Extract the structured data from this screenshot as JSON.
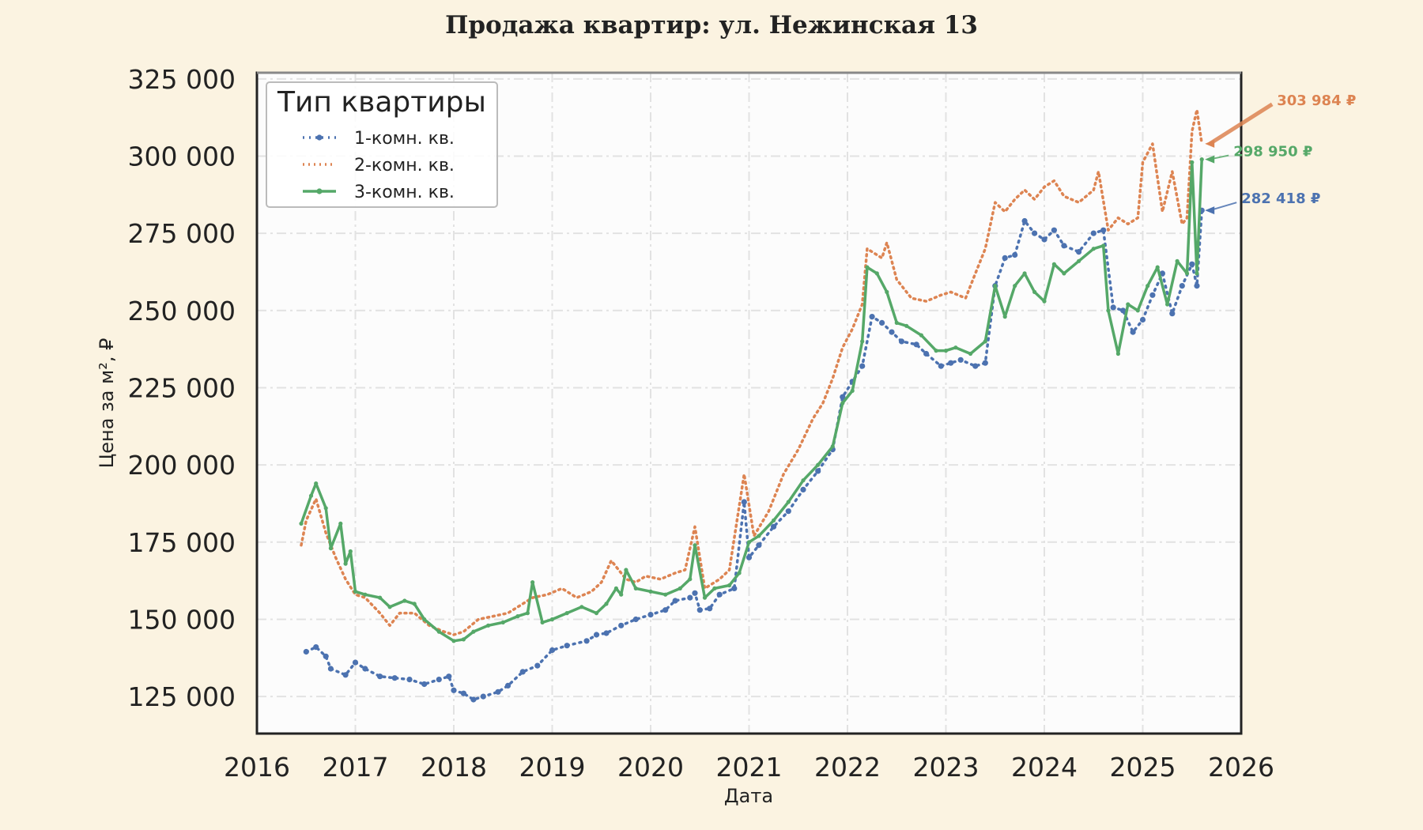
{
  "chart_data": {
    "type": "line",
    "title": "Продажа квартир: ул. Нежинская 13",
    "xlabel": "Дата",
    "ylabel": "Цена за м², ₽",
    "xlim": [
      2016,
      2026
    ],
    "ylim": [
      113000,
      327000
    ],
    "x_ticks": [
      "2016",
      "2017",
      "2018",
      "2019",
      "2020",
      "2021",
      "2022",
      "2023",
      "2024",
      "2025",
      "2026"
    ],
    "y_ticks": [
      "125 000",
      "150 000",
      "175 000",
      "200 000",
      "225 000",
      "250 000",
      "275 000",
      "300 000",
      "325 000"
    ],
    "grid": true,
    "legend_title": "Тип квартиры",
    "legend_position": "top-left",
    "series": [
      {
        "name": "1-комн. кв.",
        "color": "#4c72b0",
        "style": "dotted-markers",
        "points": [
          [
            2016.5,
            139500
          ],
          [
            2016.6,
            141000
          ],
          [
            2016.7,
            138000
          ],
          [
            2016.75,
            134000
          ],
          [
            2016.9,
            132000
          ],
          [
            2017.0,
            136000
          ],
          [
            2017.1,
            134000
          ],
          [
            2017.25,
            131500
          ],
          [
            2017.4,
            131000
          ],
          [
            2017.55,
            130500
          ],
          [
            2017.7,
            129000
          ],
          [
            2017.85,
            130500
          ],
          [
            2017.95,
            131500
          ],
          [
            2018.0,
            127000
          ],
          [
            2018.1,
            126000
          ],
          [
            2018.2,
            124000
          ],
          [
            2018.3,
            125000
          ],
          [
            2018.45,
            126500
          ],
          [
            2018.55,
            128500
          ],
          [
            2018.7,
            133000
          ],
          [
            2018.85,
            135000
          ],
          [
            2019.0,
            140000
          ],
          [
            2019.15,
            141500
          ],
          [
            2019.35,
            143000
          ],
          [
            2019.45,
            145000
          ],
          [
            2019.55,
            145500
          ],
          [
            2019.7,
            148000
          ],
          [
            2019.85,
            150000
          ],
          [
            2020.0,
            151500
          ],
          [
            2020.15,
            153000
          ],
          [
            2020.25,
            156000
          ],
          [
            2020.4,
            157000
          ],
          [
            2020.45,
            158500
          ],
          [
            2020.5,
            153000
          ],
          [
            2020.6,
            153500
          ],
          [
            2020.7,
            158000
          ],
          [
            2020.85,
            160000
          ],
          [
            2020.95,
            188000
          ],
          [
            2021.0,
            170000
          ],
          [
            2021.1,
            174000
          ],
          [
            2021.25,
            180000
          ],
          [
            2021.4,
            185000
          ],
          [
            2021.55,
            192000
          ],
          [
            2021.7,
            198000
          ],
          [
            2021.85,
            205000
          ],
          [
            2021.95,
            222000
          ],
          [
            2022.05,
            227000
          ],
          [
            2022.15,
            232000
          ],
          [
            2022.25,
            248000
          ],
          [
            2022.35,
            246000
          ],
          [
            2022.45,
            243000
          ],
          [
            2022.55,
            240000
          ],
          [
            2022.7,
            239000
          ],
          [
            2022.8,
            236000
          ],
          [
            2022.95,
            232000
          ],
          [
            2023.05,
            233000
          ],
          [
            2023.15,
            234000
          ],
          [
            2023.3,
            232000
          ],
          [
            2023.4,
            233000
          ],
          [
            2023.5,
            258000
          ],
          [
            2023.6,
            267000
          ],
          [
            2023.7,
            268000
          ],
          [
            2023.8,
            279000
          ],
          [
            2023.9,
            275000
          ],
          [
            2024.0,
            273000
          ],
          [
            2024.1,
            276000
          ],
          [
            2024.2,
            271000
          ],
          [
            2024.35,
            269000
          ],
          [
            2024.5,
            275000
          ],
          [
            2024.6,
            276000
          ],
          [
            2024.7,
            251000
          ],
          [
            2024.8,
            250000
          ],
          [
            2024.9,
            243000
          ],
          [
            2025.0,
            247000
          ],
          [
            2025.1,
            255000
          ],
          [
            2025.2,
            262000
          ],
          [
            2025.3,
            249000
          ],
          [
            2025.4,
            258000
          ],
          [
            2025.5,
            265000
          ],
          [
            2025.55,
            258000
          ],
          [
            2025.6,
            282418
          ]
        ]
      },
      {
        "name": "2-комн. кв.",
        "color": "#dd8452",
        "style": "dotted",
        "points": [
          [
            2016.45,
            174000
          ],
          [
            2016.5,
            182000
          ],
          [
            2016.6,
            189000
          ],
          [
            2016.7,
            178000
          ],
          [
            2016.8,
            170000
          ],
          [
            2016.9,
            163000
          ],
          [
            2017.0,
            158000
          ],
          [
            2017.1,
            157000
          ],
          [
            2017.25,
            152000
          ],
          [
            2017.35,
            148000
          ],
          [
            2017.45,
            152000
          ],
          [
            2017.6,
            152000
          ],
          [
            2017.75,
            148000
          ],
          [
            2017.9,
            146000
          ],
          [
            2018.0,
            145000
          ],
          [
            2018.1,
            146000
          ],
          [
            2018.25,
            150000
          ],
          [
            2018.4,
            151000
          ],
          [
            2018.55,
            152000
          ],
          [
            2018.7,
            155000
          ],
          [
            2018.8,
            157000
          ],
          [
            2018.95,
            158000
          ],
          [
            2019.1,
            160000
          ],
          [
            2019.25,
            157000
          ],
          [
            2019.4,
            159000
          ],
          [
            2019.5,
            162000
          ],
          [
            2019.6,
            169000
          ],
          [
            2019.75,
            163000
          ],
          [
            2019.85,
            162000
          ],
          [
            2019.95,
            164000
          ],
          [
            2020.1,
            163000
          ],
          [
            2020.25,
            165000
          ],
          [
            2020.35,
            166000
          ],
          [
            2020.45,
            180000
          ],
          [
            2020.55,
            160000
          ],
          [
            2020.7,
            163000
          ],
          [
            2020.8,
            166000
          ],
          [
            2020.95,
            197000
          ],
          [
            2021.05,
            177000
          ],
          [
            2021.2,
            185000
          ],
          [
            2021.35,
            197000
          ],
          [
            2021.5,
            205000
          ],
          [
            2021.65,
            215000
          ],
          [
            2021.75,
            220000
          ],
          [
            2021.85,
            228000
          ],
          [
            2021.95,
            238000
          ],
          [
            2022.05,
            244000
          ],
          [
            2022.15,
            252000
          ],
          [
            2022.2,
            270000
          ],
          [
            2022.35,
            267000
          ],
          [
            2022.4,
            272000
          ],
          [
            2022.5,
            260000
          ],
          [
            2022.65,
            254000
          ],
          [
            2022.8,
            253000
          ],
          [
            2022.95,
            255000
          ],
          [
            2023.05,
            256000
          ],
          [
            2023.2,
            254000
          ],
          [
            2023.3,
            262000
          ],
          [
            2023.4,
            270000
          ],
          [
            2023.5,
            285000
          ],
          [
            2023.6,
            282000
          ],
          [
            2023.7,
            286000
          ],
          [
            2023.8,
            289000
          ],
          [
            2023.9,
            286000
          ],
          [
            2024.0,
            290000
          ],
          [
            2024.1,
            292000
          ],
          [
            2024.2,
            287000
          ],
          [
            2024.35,
            285000
          ],
          [
            2024.5,
            289000
          ],
          [
            2024.55,
            295000
          ],
          [
            2024.65,
            276000
          ],
          [
            2024.75,
            280000
          ],
          [
            2024.85,
            278000
          ],
          [
            2024.95,
            280000
          ],
          [
            2025.0,
            298000
          ],
          [
            2025.1,
            304000
          ],
          [
            2025.2,
            282000
          ],
          [
            2025.3,
            295000
          ],
          [
            2025.4,
            278000
          ],
          [
            2025.45,
            280000
          ],
          [
            2025.5,
            308000
          ],
          [
            2025.55,
            315000
          ],
          [
            2025.6,
            303984
          ]
        ]
      },
      {
        "name": "3-комн. кв.",
        "color": "#55a868",
        "style": "solid-markers",
        "points": [
          [
            2016.45,
            181000
          ],
          [
            2016.55,
            190000
          ],
          [
            2016.6,
            194000
          ],
          [
            2016.7,
            186000
          ],
          [
            2016.75,
            173000
          ],
          [
            2016.85,
            181000
          ],
          [
            2016.9,
            168000
          ],
          [
            2016.95,
            172000
          ],
          [
            2017.0,
            159000
          ],
          [
            2017.1,
            158000
          ],
          [
            2017.25,
            157000
          ],
          [
            2017.35,
            154000
          ],
          [
            2017.5,
            156000
          ],
          [
            2017.6,
            155000
          ],
          [
            2017.7,
            150000
          ],
          [
            2017.85,
            146000
          ],
          [
            2018.0,
            143000
          ],
          [
            2018.1,
            143500
          ],
          [
            2018.2,
            146000
          ],
          [
            2018.35,
            148000
          ],
          [
            2018.5,
            149000
          ],
          [
            2018.65,
            151000
          ],
          [
            2018.75,
            152000
          ],
          [
            2018.8,
            162000
          ],
          [
            2018.9,
            149000
          ],
          [
            2019.0,
            150000
          ],
          [
            2019.15,
            152000
          ],
          [
            2019.3,
            154000
          ],
          [
            2019.45,
            152000
          ],
          [
            2019.55,
            155000
          ],
          [
            2019.65,
            160000
          ],
          [
            2019.7,
            158000
          ],
          [
            2019.75,
            166000
          ],
          [
            2019.85,
            160000
          ],
          [
            2020.0,
            159000
          ],
          [
            2020.15,
            158000
          ],
          [
            2020.3,
            160000
          ],
          [
            2020.4,
            163000
          ],
          [
            2020.45,
            174000
          ],
          [
            2020.55,
            157000
          ],
          [
            2020.65,
            160000
          ],
          [
            2020.8,
            161000
          ],
          [
            2020.9,
            165000
          ],
          [
            2021.0,
            175000
          ],
          [
            2021.1,
            177000
          ],
          [
            2021.25,
            182000
          ],
          [
            2021.4,
            188000
          ],
          [
            2021.55,
            195000
          ],
          [
            2021.7,
            200000
          ],
          [
            2021.85,
            206000
          ],
          [
            2021.95,
            220000
          ],
          [
            2022.05,
            224000
          ],
          [
            2022.15,
            240000
          ],
          [
            2022.2,
            264000
          ],
          [
            2022.3,
            262000
          ],
          [
            2022.4,
            256000
          ],
          [
            2022.5,
            246000
          ],
          [
            2022.6,
            245000
          ],
          [
            2022.75,
            242000
          ],
          [
            2022.9,
            237000
          ],
          [
            2023.0,
            237000
          ],
          [
            2023.1,
            238000
          ],
          [
            2023.25,
            236000
          ],
          [
            2023.4,
            240000
          ],
          [
            2023.5,
            258000
          ],
          [
            2023.6,
            248000
          ],
          [
            2023.7,
            258000
          ],
          [
            2023.8,
            262000
          ],
          [
            2023.9,
            256000
          ],
          [
            2024.0,
            253000
          ],
          [
            2024.1,
            265000
          ],
          [
            2024.2,
            262000
          ],
          [
            2024.35,
            266000
          ],
          [
            2024.5,
            270000
          ],
          [
            2024.6,
            271000
          ],
          [
            2024.65,
            250000
          ],
          [
            2024.75,
            236000
          ],
          [
            2024.85,
            252000
          ],
          [
            2024.95,
            250000
          ],
          [
            2025.05,
            258000
          ],
          [
            2025.15,
            264000
          ],
          [
            2025.25,
            252000
          ],
          [
            2025.35,
            266000
          ],
          [
            2025.45,
            262000
          ],
          [
            2025.5,
            298000
          ],
          [
            2025.55,
            262000
          ],
          [
            2025.6,
            298950
          ]
        ]
      }
    ],
    "annotations": [
      {
        "series": 1,
        "text": "303 984 ₽",
        "color": "#dd8452"
      },
      {
        "series": 2,
        "text": "298 950 ₽",
        "color": "#55a868"
      },
      {
        "series": 0,
        "text": "282 418 ₽",
        "color": "#4c72b0"
      }
    ]
  }
}
